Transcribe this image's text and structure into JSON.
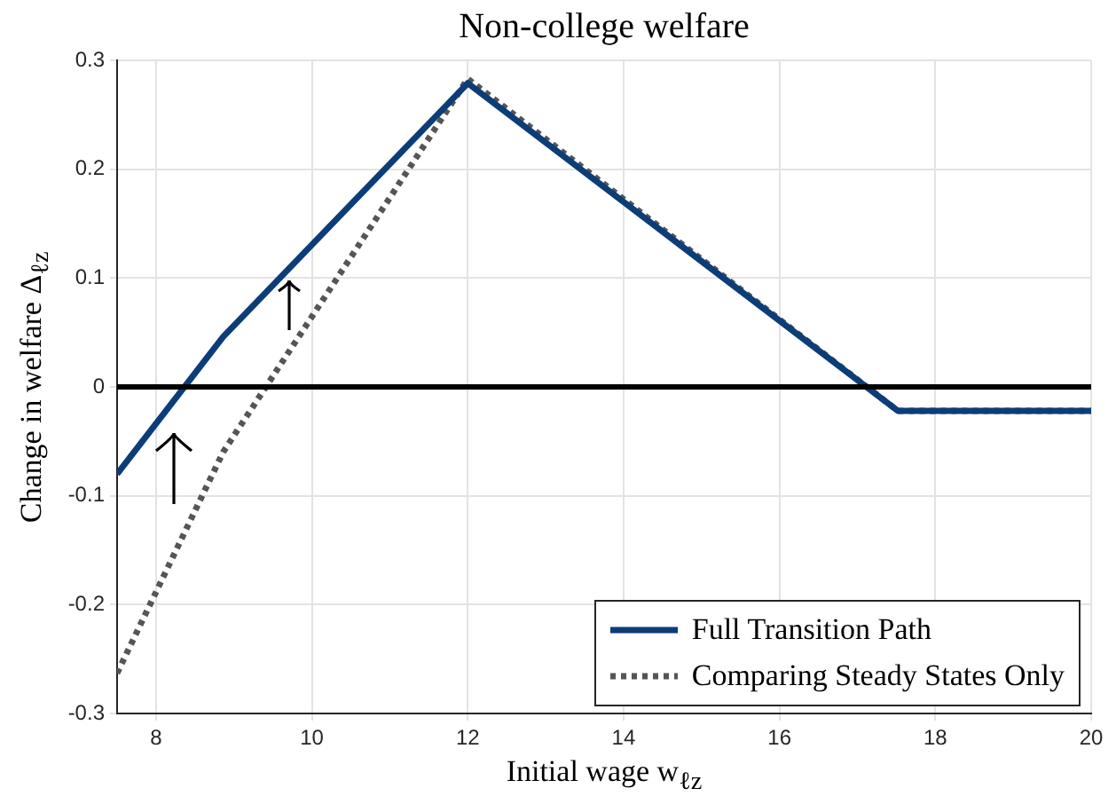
{
  "chart_data": {
    "type": "line",
    "title": "Non-college welfare",
    "xlabel": "Initial wage w$_{ℓz}$",
    "ylabel": "Change in welfare Δ$_{ℓz}$",
    "xlim": [
      7.5,
      20
    ],
    "xticks": [
      8,
      10,
      12,
      14,
      16,
      18,
      20
    ],
    "ylim": [
      -0.3,
      0.3
    ],
    "yticks": [
      -0.3,
      -0.2,
      -0.1,
      0,
      0.1,
      0.2,
      0.3
    ],
    "grid": true,
    "legend": "bottom right",
    "marker": "none",
    "series": [
      {
        "name": "Full Transition Path",
        "color": "#0c3d78",
        "line_style": "solid",
        "x": [
          7.5,
          8.86,
          12,
          17.52,
          20
        ],
        "values": [
          -0.08,
          0.046,
          0.279,
          -0.022,
          -0.022
        ]
      },
      {
        "name": "Comparing Steady States Only",
        "color": "#555555",
        "line_style": "dotted",
        "x": [
          7.5,
          8.86,
          12,
          17.52,
          20
        ],
        "values": [
          -0.263,
          -0.06,
          0.283,
          -0.022,
          -0.022
        ]
      }
    ],
    "ref_lines": [
      {
        "axis": "y",
        "value": 0,
        "color": "#000000",
        "line_style": "solid"
      }
    ]
  }
}
